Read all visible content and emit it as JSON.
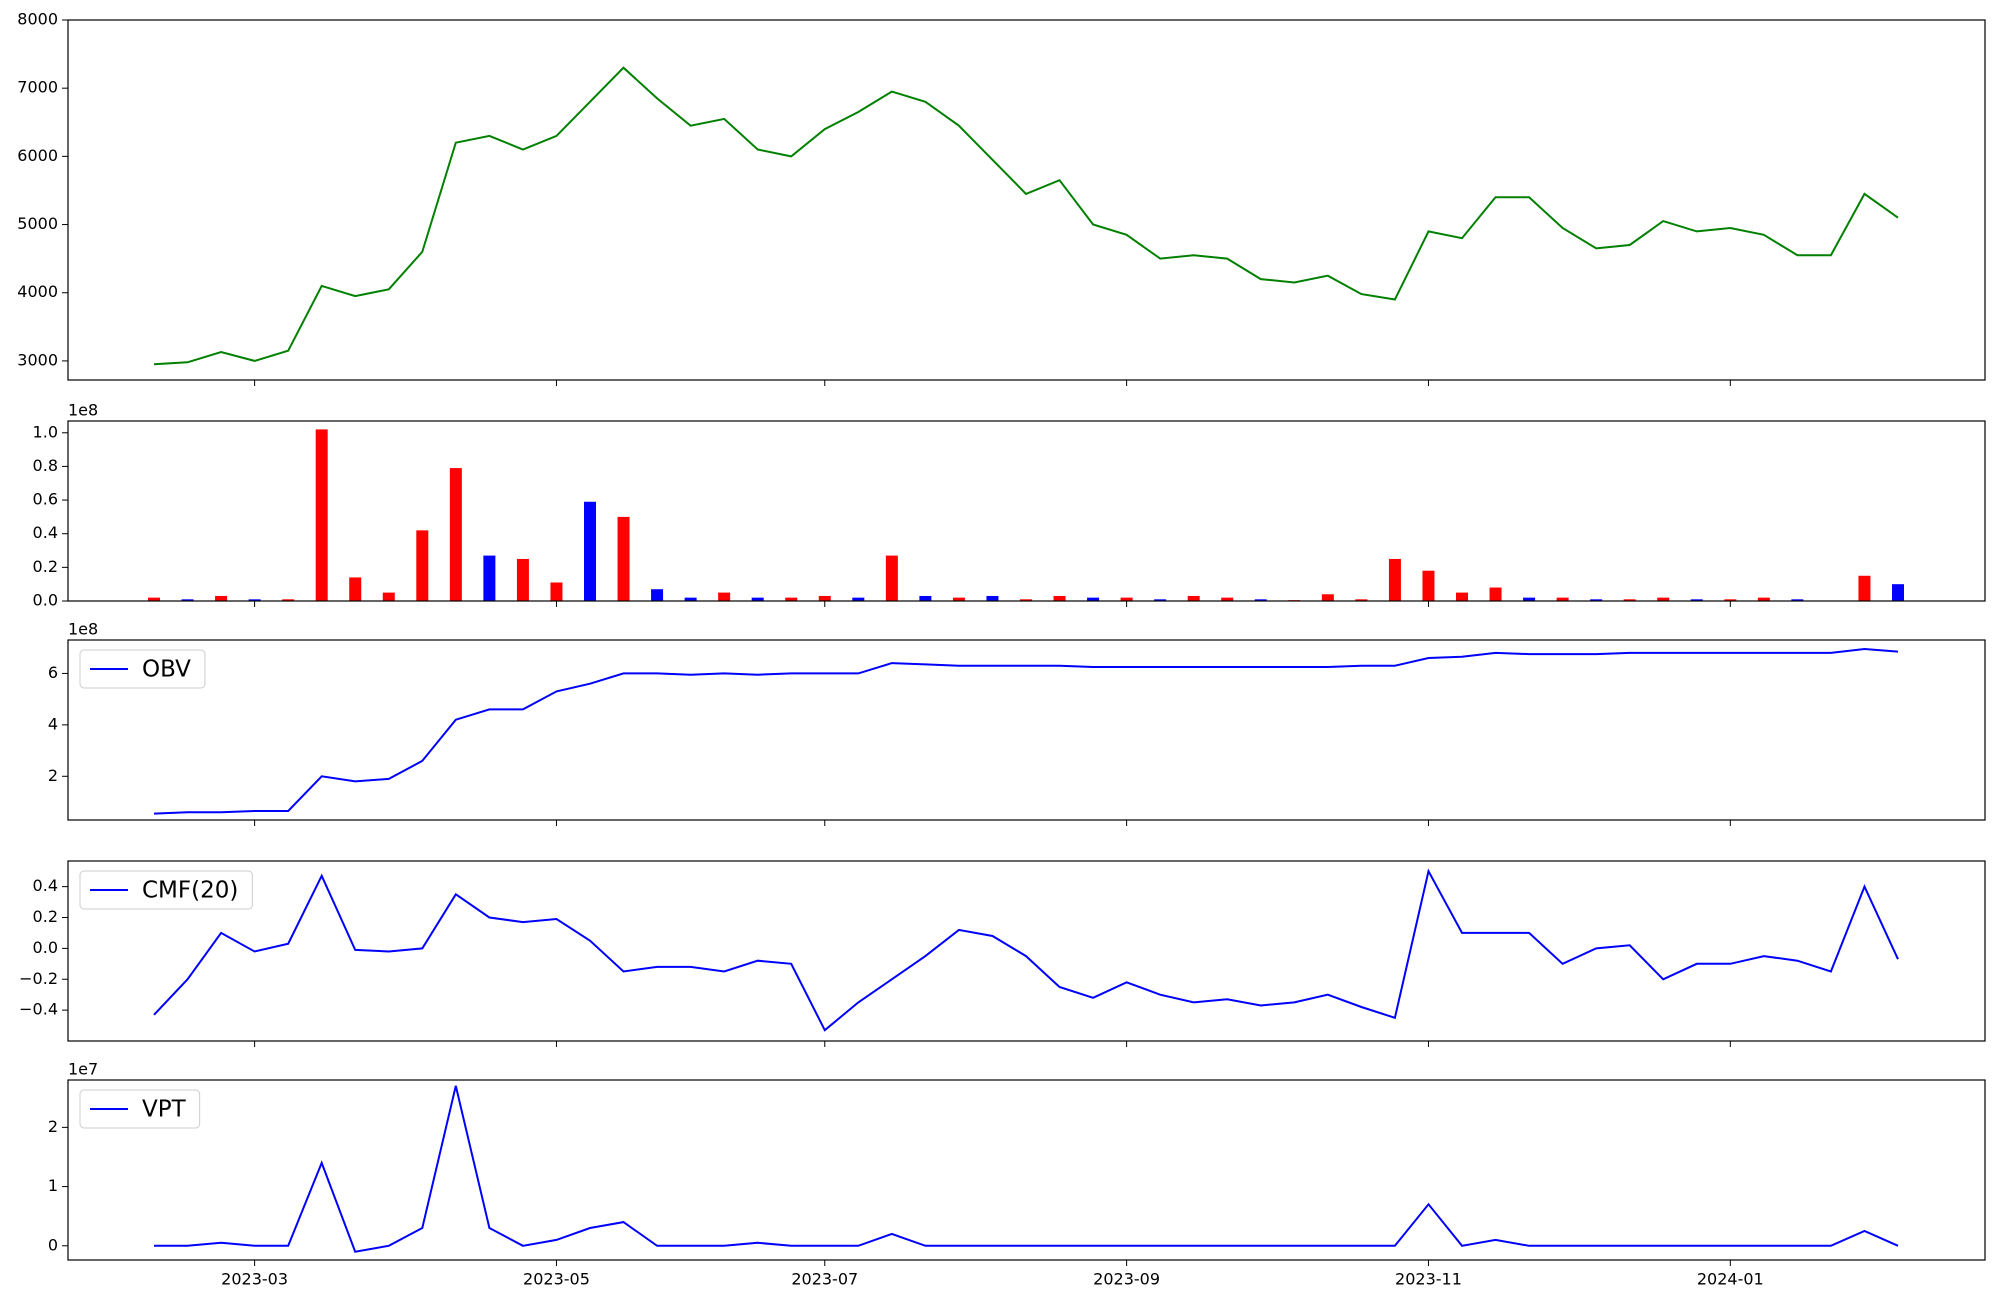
{
  "chart_data": [
    {
      "type": "line",
      "ylim": [
        2720,
        8000
      ],
      "yticks": [
        3000,
        4000,
        5000,
        6000,
        7000,
        8000
      ],
      "series": [
        {
          "color": "#008000",
          "values": [
            2950,
            2980,
            3130,
            3000,
            3150,
            4100,
            3950,
            4050,
            4600,
            6200,
            6300,
            6100,
            6300,
            6800,
            7300,
            6850,
            6450,
            6550,
            6100,
            6000,
            6400,
            6650,
            6950,
            6800,
            6450,
            5950,
            5450,
            5650,
            5000,
            4850,
            4500,
            4550,
            4500,
            4200,
            4150,
            4250,
            3980,
            3900,
            4900,
            4800,
            5400,
            5400,
            4950,
            4650,
            4700,
            5050,
            4900,
            4950,
            4850,
            4550,
            4550,
            5450,
            5100
          ]
        }
      ]
    },
    {
      "type": "bar",
      "offset_label": "1e8",
      "ylim": [
        0,
        1.07
      ],
      "yticks": [
        {
          "value": 0,
          "label": "0.0"
        },
        0.2,
        0.4,
        0.6,
        0.8,
        {
          "value": 1,
          "label": "1.0"
        }
      ],
      "values": [
        0.02,
        0.01,
        0.03,
        0.01,
        0.01,
        1.02,
        0.14,
        0.05,
        0.42,
        0.79,
        0.27,
        0.25,
        0.11,
        0.59,
        0.5,
        0.07,
        0.02,
        0.05,
        0.02,
        0.02,
        0.03,
        0.02,
        0.27,
        0.03,
        0.02,
        0.03,
        0.01,
        0.03,
        0.02,
        0.02,
        0.01,
        0.03,
        0.02,
        0.01,
        0.005,
        0.04,
        0.01,
        0.25,
        0.18,
        0.05,
        0.08,
        0.02,
        0.02,
        0.01,
        0.01,
        0.02,
        0.01,
        0.01,
        0.02,
        0.01,
        0,
        0.15,
        0.1
      ],
      "colors": [
        "red",
        "blue",
        "red",
        "blue",
        "red",
        "red",
        "red",
        "red",
        "red",
        "red",
        "blue",
        "red",
        "red",
        "blue",
        "red",
        "blue",
        "blue",
        "red",
        "blue",
        "red",
        "red",
        "blue",
        "red",
        "blue",
        "red",
        "blue",
        "red",
        "red",
        "blue",
        "red",
        "blue",
        "red",
        "red",
        "blue",
        "red",
        "red",
        "red",
        "red",
        "red",
        "red",
        "red",
        "blue",
        "red",
        "blue",
        "red",
        "red",
        "blue",
        "red",
        "red",
        "blue",
        "red",
        "red",
        "blue"
      ]
    },
    {
      "type": "line",
      "offset_label": "1e8",
      "ylim": [
        0.3,
        7.3
      ],
      "yticks": [
        2,
        4,
        6
      ],
      "legend": "upper left",
      "series": [
        {
          "name": "OBV",
          "color": "#0000ff",
          "values": [
            0.55,
            0.6,
            0.6,
            0.65,
            0.65,
            2.0,
            1.8,
            1.9,
            2.6,
            4.2,
            4.6,
            4.6,
            5.3,
            5.6,
            6.0,
            6.0,
            5.95,
            6.0,
            5.95,
            6.0,
            6.0,
            6.0,
            6.4,
            6.35,
            6.3,
            6.3,
            6.3,
            6.3,
            6.25,
            6.25,
            6.25,
            6.25,
            6.25,
            6.25,
            6.25,
            6.25,
            6.3,
            6.3,
            6.6,
            6.65,
            6.8,
            6.75,
            6.75,
            6.75,
            6.8,
            6.8,
            6.8,
            6.8,
            6.8,
            6.8,
            6.8,
            6.95,
            6.85
          ]
        }
      ]
    },
    {
      "type": "line",
      "ylim": [
        -0.6,
        0.566
      ],
      "legend": "upper left",
      "yticks": [
        {
          "value": -0.4,
          "label": "−0.4"
        },
        {
          "value": -0.2,
          "label": "−0.2"
        },
        {
          "value": 0,
          "label": "0.0"
        },
        0.2,
        0.4
      ],
      "series": [
        {
          "name": "CMF(20)",
          "color": "#0000ff",
          "values": [
            -0.43,
            -0.2,
            0.1,
            -0.02,
            0.03,
            0.47,
            -0.01,
            -0.02,
            0.0,
            0.35,
            0.2,
            0.17,
            0.19,
            0.05,
            -0.15,
            -0.12,
            -0.12,
            -0.15,
            -0.08,
            -0.1,
            -0.53,
            -0.35,
            -0.2,
            -0.05,
            0.12,
            0.08,
            -0.05,
            -0.25,
            -0.32,
            -0.22,
            -0.3,
            -0.35,
            -0.33,
            -0.37,
            -0.35,
            -0.3,
            -0.38,
            -0.45,
            0.5,
            0.1,
            0.1,
            0.1,
            -0.1,
            0.0,
            0.02,
            -0.2,
            -0.1,
            -0.1,
            -0.05,
            -0.08,
            -0.15,
            0.4,
            -0.07
          ]
        }
      ]
    },
    {
      "type": "line",
      "offset_label": "1e7",
      "ylim": [
        -0.24,
        2.8
      ],
      "yticks": [
        0,
        1,
        2
      ],
      "legend": "upper left",
      "categories": [
        null,
        null,
        null,
        "2023-03",
        null,
        null,
        null,
        null,
        null,
        null,
        null,
        null,
        "2023-05",
        null,
        null,
        null,
        null,
        null,
        null,
        null,
        "2023-07",
        null,
        null,
        null,
        null,
        null,
        null,
        null,
        null,
        "2023-09",
        null,
        null,
        null,
        null,
        null,
        null,
        null,
        null,
        "2023-11",
        null,
        null,
        null,
        null,
        null,
        null,
        null,
        null,
        "2024-01",
        null,
        null,
        null,
        null,
        null
      ],
      "series": [
        {
          "name": "VPT",
          "color": "#0000ff",
          "values": [
            0.0,
            0.0,
            0.05,
            0.0,
            0.0,
            1.4,
            -0.1,
            0.0,
            0.3,
            2.7,
            0.3,
            0.0,
            0.1,
            0.3,
            0.4,
            0.0,
            0.0,
            0.0,
            0.05,
            0.0,
            0.0,
            0.0,
            0.2,
            0.0,
            0.0,
            0.0,
            0.0,
            0.0,
            0.0,
            0.0,
            0.0,
            0.0,
            0.0,
            0.0,
            0.0,
            0.0,
            0.0,
            0.0,
            0.7,
            0.0,
            0.1,
            0.0,
            0.0,
            0.0,
            0.0,
            0.0,
            0.0,
            0.0,
            0.0,
            0.0,
            0.0,
            0.25,
            0.0
          ]
        }
      ]
    }
  ]
}
